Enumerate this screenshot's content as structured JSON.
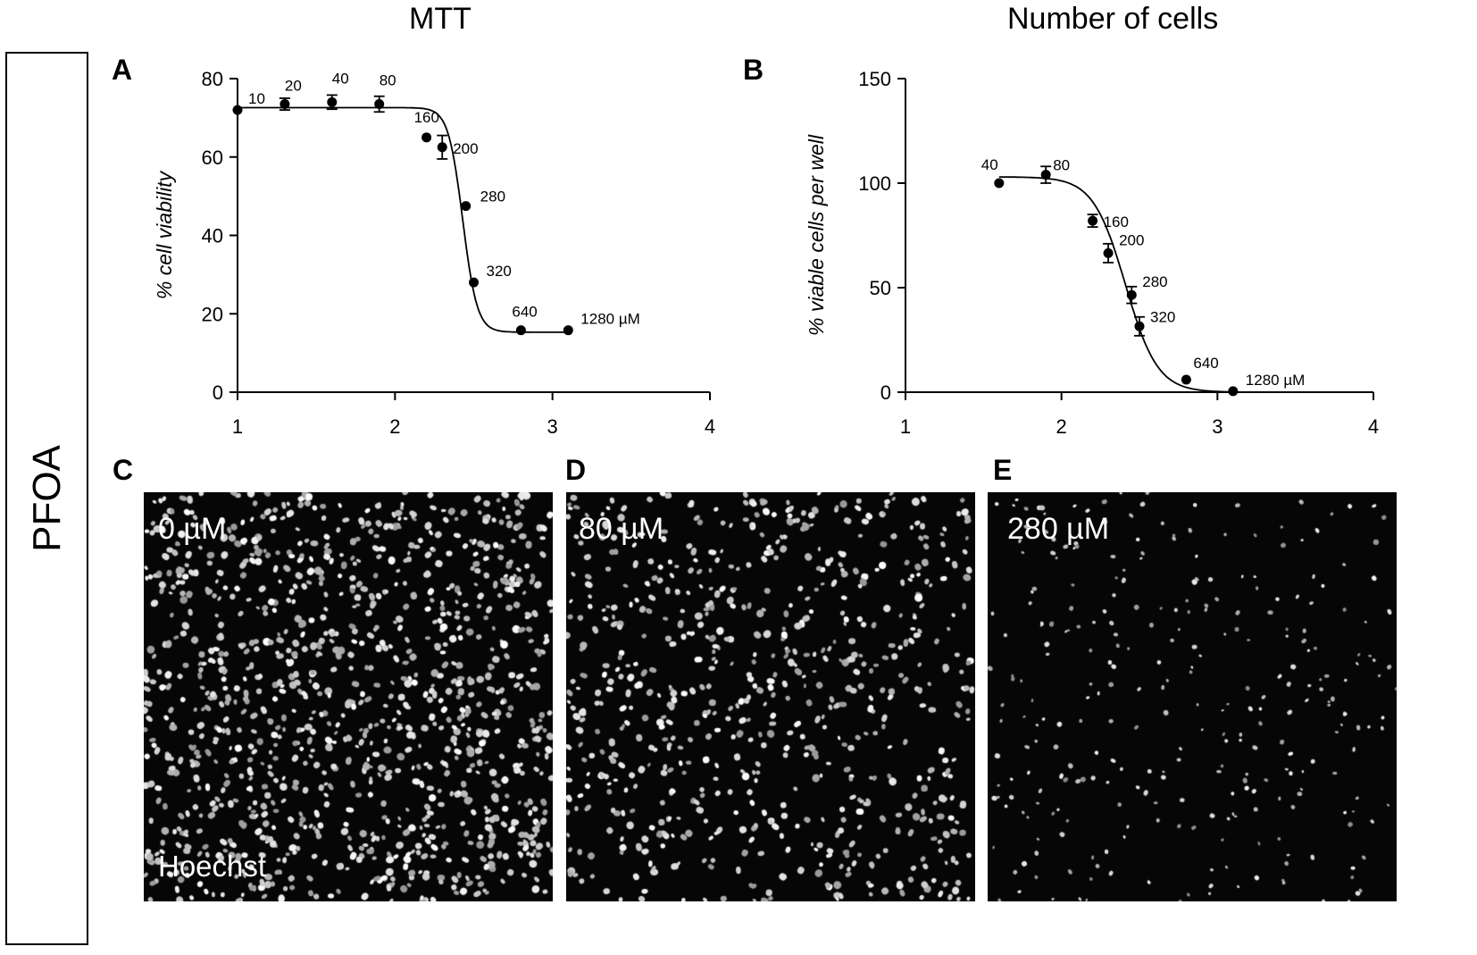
{
  "figure": {
    "column_titles": [
      "MTT",
      "Number of cells"
    ],
    "row_label": "PFOA",
    "panel_letters": [
      "A",
      "B",
      "C",
      "D",
      "E"
    ]
  },
  "chart_data": [
    {
      "panel": "A",
      "type": "scatter",
      "fit": "sigmoid dose-response curve",
      "xlabel": "",
      "ylabel": "% cell viability",
      "xlim": [
        1,
        4
      ],
      "ylim": [
        0,
        80
      ],
      "xticks": [
        1,
        2,
        3,
        4
      ],
      "yticks": [
        0,
        20,
        40,
        60,
        80
      ],
      "points": [
        {
          "x": 1.0,
          "y": 72,
          "err": 0,
          "label": "10"
        },
        {
          "x": 1.3,
          "y": 73.5,
          "err": 1.5,
          "label": "20"
        },
        {
          "x": 1.6,
          "y": 74,
          "err": 1.8,
          "label": "40"
        },
        {
          "x": 1.9,
          "y": 73.5,
          "err": 2,
          "label": "80"
        },
        {
          "x": 2.2,
          "y": 65,
          "err": 0,
          "label": "160"
        },
        {
          "x": 2.3,
          "y": 62.5,
          "err": 3,
          "label": "200"
        },
        {
          "x": 2.45,
          "y": 47.5,
          "err": 0,
          "label": "280"
        },
        {
          "x": 2.5,
          "y": 28,
          "err": 0,
          "label": "320"
        },
        {
          "x": 2.8,
          "y": 15.8,
          "err": 0,
          "label": "640"
        },
        {
          "x": 3.1,
          "y": 15.8,
          "err": 0,
          "label": "1280 µM"
        }
      ],
      "curve": {
        "bottom": 15.3,
        "top": 72.6,
        "logEC50": 2.43,
        "hill": 9.5
      }
    },
    {
      "panel": "B",
      "type": "scatter",
      "fit": "sigmoid dose-response curve",
      "xlabel": "",
      "ylabel": "% viable cells per well",
      "xlim": [
        1,
        4
      ],
      "ylim": [
        0,
        150
      ],
      "xticks": [
        1,
        2,
        3,
        4
      ],
      "yticks": [
        0,
        50,
        100,
        150
      ],
      "points": [
        {
          "x": 1.6,
          "y": 100,
          "err": 0,
          "label": "40"
        },
        {
          "x": 1.9,
          "y": 104,
          "err": 4,
          "label": "80"
        },
        {
          "x": 2.2,
          "y": 82,
          "err": 3,
          "label": "160"
        },
        {
          "x": 2.3,
          "y": 66.5,
          "err": 4.5,
          "label": "200"
        },
        {
          "x": 2.45,
          "y": 46.5,
          "err": 4,
          "label": "280"
        },
        {
          "x": 2.5,
          "y": 31.5,
          "err": 4.5,
          "label": "320"
        },
        {
          "x": 2.8,
          "y": 6,
          "err": 0,
          "label": "640"
        },
        {
          "x": 3.1,
          "y": 0.5,
          "err": 0,
          "label": "1280 µM"
        }
      ],
      "curve": {
        "bottom": 0,
        "top": 103,
        "logEC50": 2.41,
        "hill": 4.2
      }
    }
  ],
  "images": [
    {
      "panel": "C",
      "label": "0 µM",
      "stain": "Hoechst",
      "cell_density": "high"
    },
    {
      "panel": "D",
      "label": "80 µM",
      "stain": "",
      "cell_density": "medium"
    },
    {
      "panel": "E",
      "label": "280 µM",
      "stain": "",
      "cell_density": "low"
    }
  ]
}
